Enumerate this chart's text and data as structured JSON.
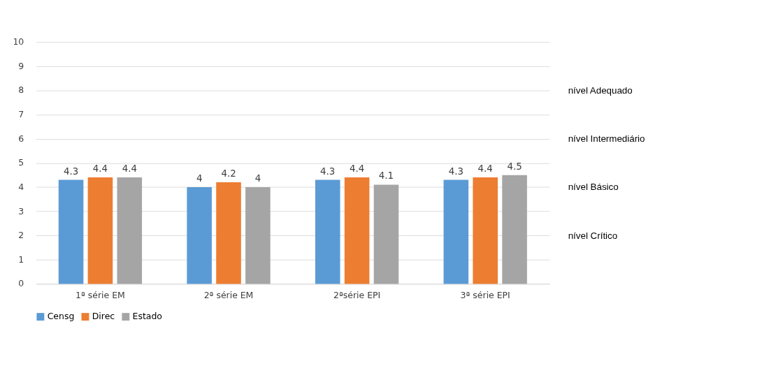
{
  "chart_data": {
    "type": "bar",
    "categories": [
      "1ª série EM",
      "2ª série EM",
      "2ªsérie EPI",
      "3ª série EPI"
    ],
    "series": [
      {
        "name": "Censg",
        "color": "#5b9bd5",
        "values": [
          4.3,
          4.0,
          4.3,
          4.3
        ]
      },
      {
        "name": "Direc",
        "color": "#ed7d31",
        "values": [
          4.4,
          4.2,
          4.4,
          4.4
        ]
      },
      {
        "name": "Estado",
        "color": "#a5a5a5",
        "values": [
          4.4,
          4.0,
          4.1,
          4.5
        ]
      }
    ],
    "ylim": [
      0,
      10
    ],
    "yticks": [
      0,
      1,
      2,
      3,
      4,
      5,
      6,
      7,
      8,
      9,
      10
    ],
    "grid": "y",
    "legend": "bottom",
    "data_labels": true,
    "annotations": [
      "nível Adequado",
      "nível Intermediário",
      "nível Básico",
      "nível Crítico"
    ]
  }
}
